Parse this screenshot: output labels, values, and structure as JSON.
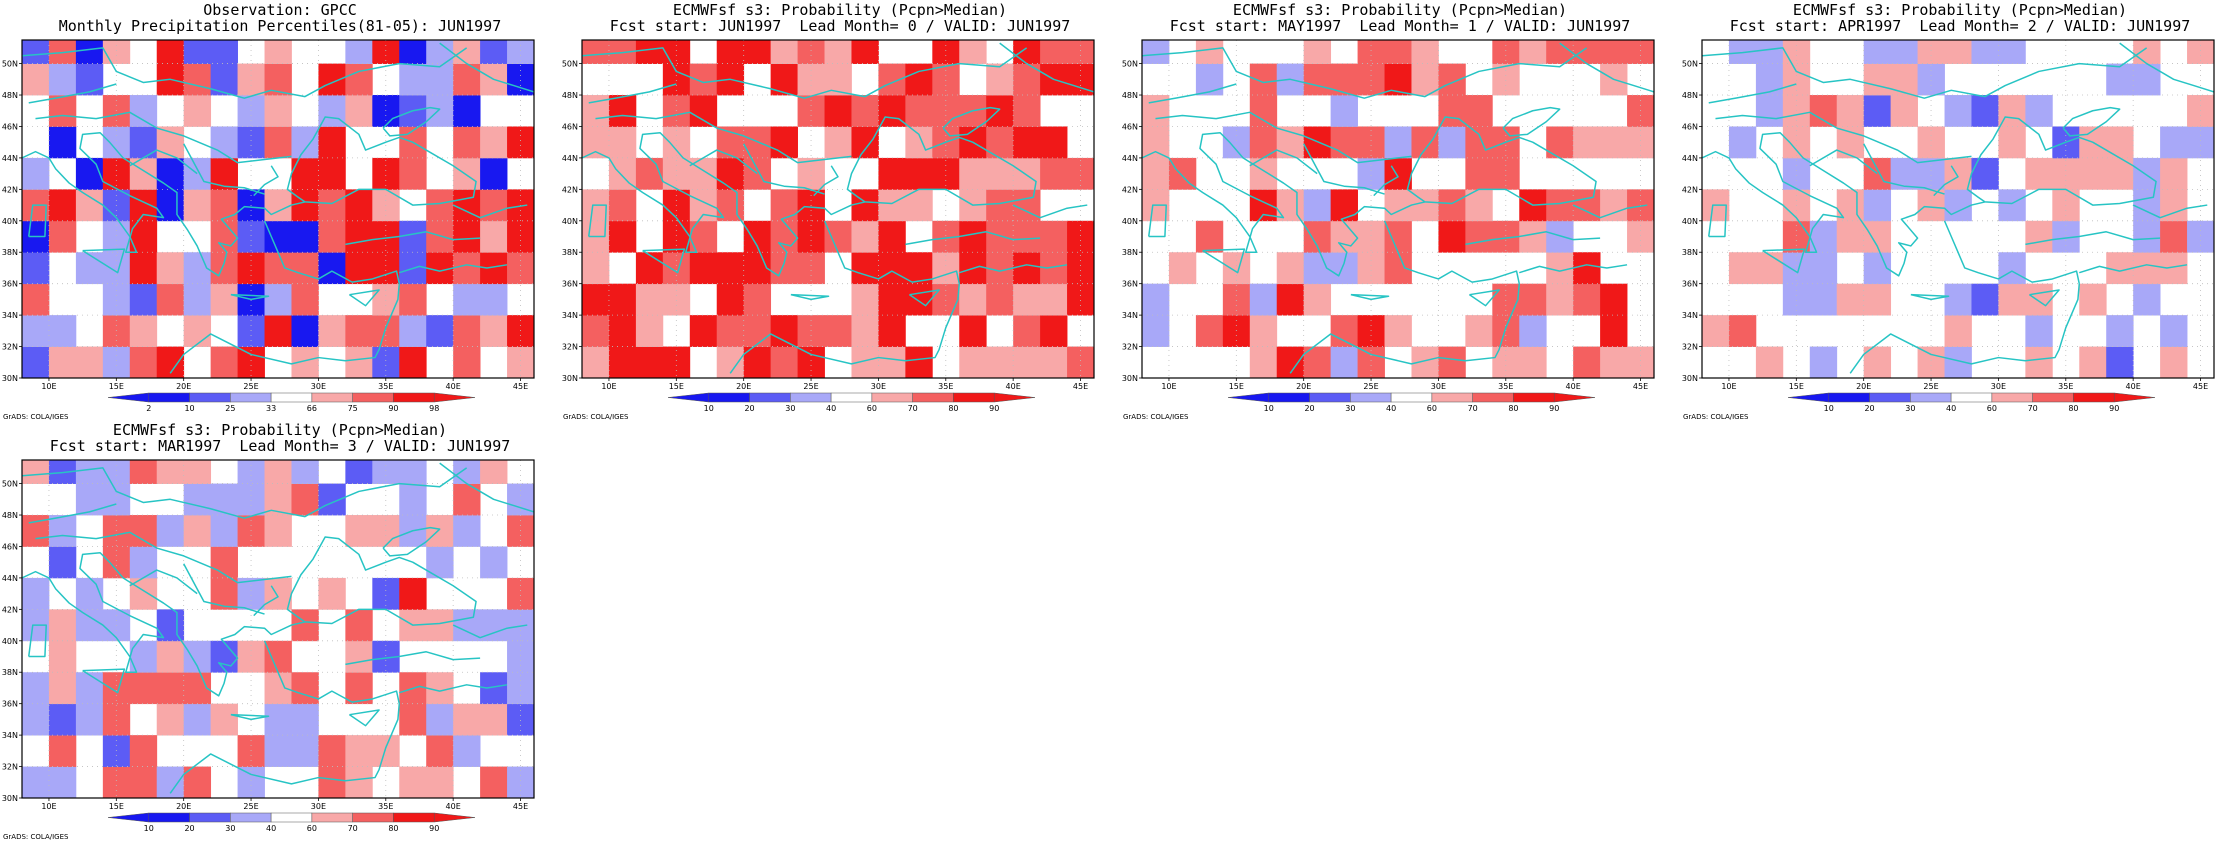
{
  "footer_credit": "GrADS: COLA/IGES",
  "lat_ticks": [
    "30N",
    "32N",
    "34N",
    "36N",
    "38N",
    "40N",
    "42N",
    "44N",
    "46N",
    "48N",
    "50N"
  ],
  "lon_ticks": [
    "10E",
    "15E",
    "20E",
    "25E",
    "30E",
    "35E",
    "40E",
    "45E"
  ],
  "colors": {
    "coast": "#27c4c4",
    "grid": "#bdbdbd",
    "dark_blue": "#1818f0",
    "mid_blue": "#5c5cf5",
    "light_blue": "#a8a8f8",
    "light_red": "#f8a8a8",
    "mid_red": "#f46060",
    "dark_red": "#f01818"
  },
  "panels": [
    {
      "title_line1": "Observation: GPCC",
      "title_line2": "Monthly Precipitation Percentiles(81-05): JUN1997",
      "legend_labels": [
        "2",
        "10",
        "25",
        "33",
        "66",
        "75",
        "90",
        "98"
      ],
      "seed": 11,
      "bias": 0.05,
      "spread": 0.95
    },
    {
      "title_line1": "ECMWFsf s3: Probability (Pcpn>Median)",
      "title_line2": "Fcst start: JUN1997  Lead Month= 0 / VALID: JUN1997",
      "legend_labels": [
        "10",
        "20",
        "30",
        "40",
        "60",
        "70",
        "80",
        "90"
      ],
      "seed": 23,
      "bias": 0.75,
      "spread": 0.55
    },
    {
      "title_line1": "ECMWFsf s3: Probability (Pcpn>Median)",
      "title_line2": "Fcst start: MAY1997  Lead Month= 1 / VALID: JUN1997",
      "legend_labels": [
        "10",
        "20",
        "30",
        "40",
        "60",
        "70",
        "80",
        "90"
      ],
      "seed": 37,
      "bias": 0.3,
      "spread": 0.55
    },
    {
      "title_line1": "ECMWFsf s3: Probability (Pcpn>Median)",
      "title_line2": "Fcst start: APR1997  Lead Month= 2 / VALID: JUN1997",
      "legend_labels": [
        "10",
        "20",
        "30",
        "40",
        "60",
        "70",
        "80",
        "90"
      ],
      "seed": 51,
      "bias": -0.05,
      "spread": 0.45
    },
    {
      "title_line1": "ECMWFsf s3: Probability (Pcpn>Median)",
      "title_line2": "Fcst start: MAR1997  Lead Month= 3 / VALID: JUN1997",
      "legend_labels": [
        "10",
        "20",
        "30",
        "40",
        "60",
        "70",
        "80",
        "90"
      ],
      "seed": 67,
      "bias": 0.05,
      "spread": 0.6
    }
  ]
}
